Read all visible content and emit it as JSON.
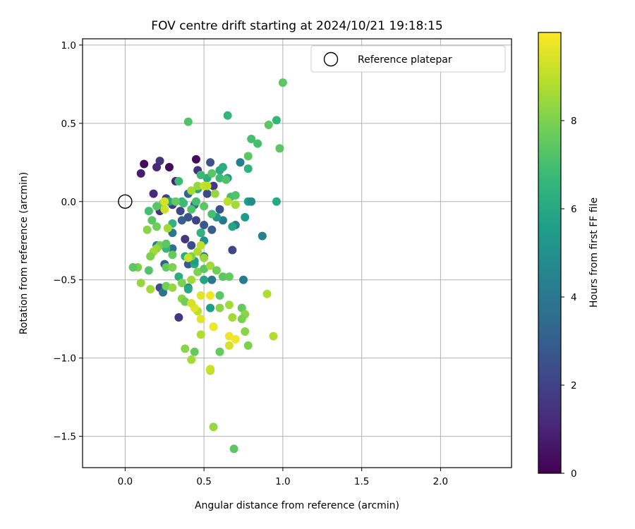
{
  "chart_data": {
    "type": "scatter",
    "title": "FOV centre drift starting at 2024/10/21 19:18:15",
    "xlabel": "Angular distance from reference (arcmin)",
    "ylabel": "Rotation from reference (arcmin)",
    "xlim": [
      -0.27,
      2.45
    ],
    "ylim": [
      -1.7,
      1.04
    ],
    "xticks": [
      0.0,
      0.5,
      1.0,
      1.5,
      2.0
    ],
    "yticks": [
      1.0,
      0.5,
      0.0,
      -0.5,
      -1.0,
      -1.5
    ],
    "xtick_labels": [
      "0.0",
      "0.5",
      "1.0",
      "1.5",
      "2.0"
    ],
    "ytick_labels": [
      "1.0",
      "0.5",
      "0.0",
      "−0.5",
      "−1.0",
      "−1.5"
    ],
    "grid": true,
    "legend": {
      "entries": [
        "Reference platepar"
      ],
      "placement": "top-right"
    },
    "reference_point": {
      "name": "Reference platepar",
      "x": 0.0,
      "y": 0.0
    },
    "colorbar": {
      "label": "Hours from first FF file",
      "range": [
        0,
        10
      ],
      "ticks": [
        0,
        2,
        4,
        6,
        8
      ],
      "tick_labels": [
        "0",
        "2",
        "4",
        "6",
        "8"
      ],
      "colormap": "viridis"
    },
    "colormap_stops": [
      "#440154",
      "#482878",
      "#3e4989",
      "#31688e",
      "#26828e",
      "#1f9e89",
      "#35b779",
      "#6ece58",
      "#b5de2b",
      "#fde725"
    ],
    "points": [
      [
        0.12,
        0.24,
        0.2
      ],
      [
        0.28,
        0.22,
        0.2
      ],
      [
        0.45,
        0.27,
        0.3
      ],
      [
        0.1,
        0.18,
        0.8
      ],
      [
        0.22,
        0.26,
        1.5
      ],
      [
        0.2,
        0.22,
        1.2
      ],
      [
        0.32,
        0.13,
        1.0
      ],
      [
        0.18,
        0.05,
        1.2
      ],
      [
        0.26,
        0.02,
        2.0
      ],
      [
        0.3,
        -0.02,
        1.8
      ],
      [
        0.22,
        -0.06,
        1.5
      ],
      [
        0.35,
        -0.06,
        2.2
      ],
      [
        0.4,
        -0.1,
        2.5
      ],
      [
        0.45,
        -0.12,
        2.0
      ],
      [
        0.5,
        -0.15,
        2.8
      ],
      [
        0.55,
        -0.18,
        3.0
      ],
      [
        0.38,
        -0.24,
        1.6
      ],
      [
        0.42,
        -0.28,
        2.4
      ],
      [
        0.48,
        -0.2,
        2.6
      ],
      [
        0.52,
        0.05,
        2.2
      ],
      [
        0.56,
        0.1,
        1.6
      ],
      [
        0.6,
        -0.05,
        2.5
      ],
      [
        0.46,
        0.2,
        1.4
      ],
      [
        0.54,
        0.25,
        2.6
      ],
      [
        0.68,
        -0.31,
        2.2
      ],
      [
        0.34,
        -0.74,
        1.6
      ],
      [
        0.22,
        -0.55,
        2.4
      ],
      [
        0.25,
        -0.4,
        3.0
      ],
      [
        0.4,
        -0.4,
        2.8
      ],
      [
        0.3,
        -0.3,
        3.6
      ],
      [
        0.62,
        -0.12,
        4.0
      ],
      [
        0.7,
        -0.15,
        4.2
      ],
      [
        0.73,
        0.25,
        4.3
      ],
      [
        0.87,
        -0.22,
        4.5
      ],
      [
        0.75,
        -0.5,
        4.2
      ],
      [
        0.55,
        -0.5,
        4.0
      ],
      [
        0.5,
        -0.35,
        3.8
      ],
      [
        0.44,
        -0.02,
        3.5
      ],
      [
        0.4,
        0.05,
        3.3
      ],
      [
        0.36,
        -0.12,
        3.0
      ],
      [
        0.3,
        -0.2,
        4.0
      ],
      [
        0.2,
        -0.28,
        4.2
      ],
      [
        0.24,
        -0.58,
        3.8
      ],
      [
        0.4,
        -0.55,
        4.6
      ],
      [
        0.5,
        -0.25,
        5.0
      ],
      [
        0.58,
        -0.1,
        5.2
      ],
      [
        0.65,
        0.15,
        5.4
      ],
      [
        0.78,
        0.0,
        5.6
      ],
      [
        0.8,
        0.0,
        4.8
      ],
      [
        0.76,
        -0.1,
        5.4
      ],
      [
        0.68,
        -0.16,
        5.8
      ],
      [
        0.6,
        0.2,
        6.0
      ],
      [
        0.52,
        0.15,
        6.2
      ],
      [
        0.46,
        0.08,
        6.0
      ],
      [
        0.62,
        0.22,
        6.2
      ],
      [
        0.54,
        -0.68,
        5.5
      ],
      [
        0.5,
        -0.5,
        5.8
      ],
      [
        0.44,
        -0.4,
        6.0
      ],
      [
        0.38,
        -0.35,
        6.2
      ],
      [
        0.48,
        -0.2,
        6.4
      ],
      [
        0.36,
        0.0,
        6.5
      ],
      [
        0.28,
        0.0,
        6.0
      ],
      [
        0.3,
        -0.14,
        6.4
      ],
      [
        0.26,
        -0.3,
        6.6
      ],
      [
        0.34,
        -0.48,
        6.2
      ],
      [
        0.4,
        -0.56,
        6.0
      ],
      [
        0.44,
        -0.38,
        5.6
      ],
      [
        0.65,
        0.55,
        6.6
      ],
      [
        0.96,
        0.52,
        6.6
      ],
      [
        0.96,
        0.0,
        6.0
      ],
      [
        0.78,
        0.21,
        6.4
      ],
      [
        0.8,
        0.4,
        7.0
      ],
      [
        0.84,
        0.37,
        7.0
      ],
      [
        0.78,
        0.29,
        7.4
      ],
      [
        0.98,
        0.34,
        7.4
      ],
      [
        0.91,
        0.49,
        7.4
      ],
      [
        1.0,
        0.76,
        7.4
      ],
      [
        0.4,
        0.51,
        7.2
      ],
      [
        0.34,
        0.13,
        6.8
      ],
      [
        0.48,
        0.17,
        6.8
      ],
      [
        0.55,
        0.18,
        7.4
      ],
      [
        0.6,
        0.15,
        6.8
      ],
      [
        0.64,
        0.14,
        7.2
      ],
      [
        0.67,
        0.03,
        7.0
      ],
      [
        0.7,
        0.04,
        7.2
      ],
      [
        0.55,
        -0.08,
        7.0
      ],
      [
        0.5,
        -0.03,
        7.4
      ],
      [
        0.45,
        0.0,
        7.0
      ],
      [
        0.42,
        -0.05,
        7.2
      ],
      [
        0.37,
        -0.01,
        6.8
      ],
      [
        0.32,
        0.0,
        7.6
      ],
      [
        0.24,
        -0.01,
        8.0
      ],
      [
        0.2,
        -0.03,
        7.4
      ],
      [
        0.15,
        -0.06,
        7.0
      ],
      [
        0.17,
        -0.12,
        7.4
      ],
      [
        0.2,
        -0.16,
        7.8
      ],
      [
        0.14,
        -0.18,
        8.2
      ],
      [
        0.27,
        -0.17,
        8.6
      ],
      [
        0.22,
        -0.28,
        7.8
      ],
      [
        0.26,
        -0.27,
        7.4
      ],
      [
        0.3,
        -0.34,
        7.6
      ],
      [
        0.2,
        -0.3,
        8.4
      ],
      [
        0.18,
        -0.32,
        8.6
      ],
      [
        0.16,
        -0.35,
        8.0
      ],
      [
        0.26,
        -0.42,
        7.6
      ],
      [
        0.3,
        -0.42,
        8.0
      ],
      [
        0.15,
        -0.44,
        7.2
      ],
      [
        0.08,
        -0.42,
        8.0
      ],
      [
        0.05,
        -0.42,
        7.4
      ],
      [
        0.1,
        -0.52,
        8.4
      ],
      [
        0.16,
        -0.56,
        8.6
      ],
      [
        0.26,
        -0.54,
        7.8
      ],
      [
        0.3,
        -0.55,
        8.4
      ],
      [
        0.36,
        -0.52,
        8.0
      ],
      [
        0.36,
        -0.62,
        8.2
      ],
      [
        0.38,
        -0.64,
        7.8
      ],
      [
        0.42,
        -0.5,
        8.6
      ],
      [
        0.46,
        -0.45,
        8.0
      ],
      [
        0.5,
        -0.43,
        7.4
      ],
      [
        0.5,
        -0.36,
        8.4
      ],
      [
        0.54,
        -0.41,
        8.6
      ],
      [
        0.58,
        -0.44,
        7.8
      ],
      [
        0.62,
        -0.48,
        7.4
      ],
      [
        0.66,
        -0.48,
        7.6
      ],
      [
        0.6,
        -0.6,
        7.4
      ],
      [
        0.6,
        -0.68,
        8.2
      ],
      [
        0.66,
        -0.66,
        8.6
      ],
      [
        0.74,
        -0.68,
        7.6
      ],
      [
        0.76,
        -0.72,
        8.2
      ],
      [
        0.68,
        -0.74,
        8.6
      ],
      [
        0.74,
        -0.75,
        8.0
      ],
      [
        0.76,
        -0.83,
        8.2
      ],
      [
        0.78,
        -0.92,
        8.0
      ],
      [
        0.6,
        -0.96,
        7.6
      ],
      [
        0.44,
        -0.96,
        7.6
      ],
      [
        0.38,
        -0.94,
        8.2
      ],
      [
        0.42,
        -1.01,
        8.6
      ],
      [
        0.54,
        -1.08,
        8.8
      ],
      [
        0.56,
        -1.44,
        8.4
      ],
      [
        0.69,
        -1.58,
        7.4
      ],
      [
        0.94,
        -0.86,
        8.8
      ],
      [
        0.9,
        -0.59,
        8.8
      ],
      [
        0.42,
        -0.35,
        8.0
      ],
      [
        0.46,
        -0.32,
        8.8
      ],
      [
        0.48,
        -0.28,
        9.0
      ],
      [
        0.42,
        0.07,
        8.6
      ],
      [
        0.46,
        0.1,
        8.4
      ],
      [
        0.5,
        0.1,
        9.2
      ],
      [
        0.52,
        0.1,
        9.0
      ],
      [
        0.57,
        0.05,
        8.4
      ],
      [
        0.65,
        0.0,
        9.0
      ],
      [
        0.7,
        -0.02,
        8.6
      ],
      [
        0.25,
        -0.05,
        9.2
      ],
      [
        0.25,
        0.0,
        9.4
      ],
      [
        0.4,
        -0.36,
        9.2
      ],
      [
        0.48,
        -0.6,
        9.6
      ],
      [
        0.54,
        -0.6,
        9.8
      ],
      [
        0.56,
        -0.8,
        9.6
      ],
      [
        0.48,
        -0.75,
        9.6
      ],
      [
        0.46,
        -0.7,
        9.0
      ],
      [
        0.44,
        -0.68,
        9.6
      ],
      [
        0.42,
        -0.65,
        9.4
      ],
      [
        0.48,
        -0.85,
        8.8
      ],
      [
        0.66,
        -0.86,
        9.8
      ],
      [
        0.7,
        -0.88,
        9.8
      ],
      [
        0.66,
        -0.92,
        9.4
      ],
      [
        0.56,
        -0.8,
        9.8
      ],
      [
        0.54,
        -1.07,
        9.2
      ]
    ]
  }
}
